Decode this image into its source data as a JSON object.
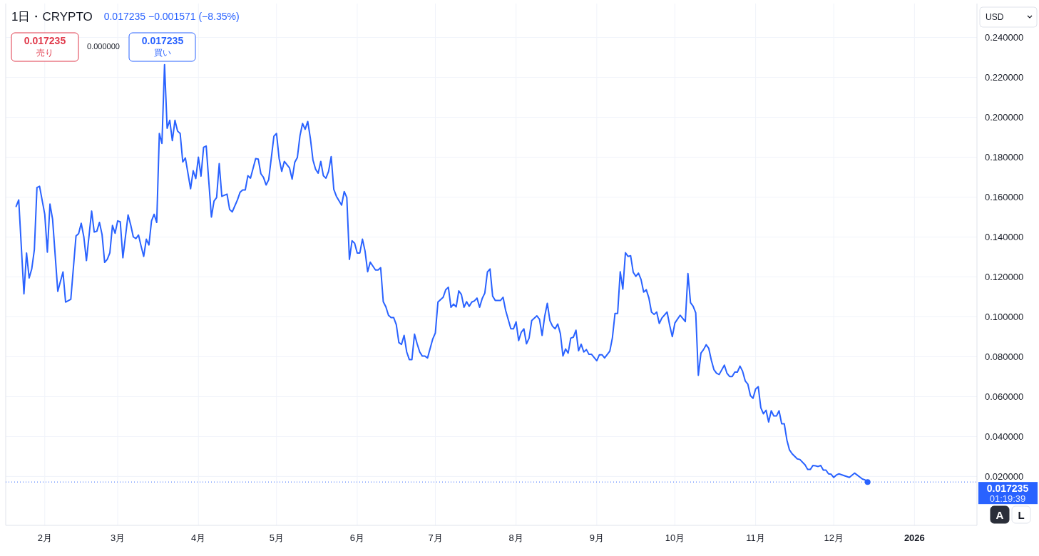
{
  "chart_data": {
    "type": "line",
    "title": "1日・CRYPTO",
    "subtitle": "0.017235 −0.001571 (−8.35%)",
    "ylabel": "USD",
    "x": [
      "2025-01-21",
      "2025-01-22",
      "2025-01-24",
      "2025-01-25",
      "2025-01-26",
      "2025-01-27",
      "2025-01-28",
      "2025-01-29",
      "2025-01-30",
      "2025-02-01",
      "2025-02-02",
      "2025-02-03",
      "2025-02-04",
      "2025-02-06",
      "2025-02-08",
      "2025-02-09",
      "2025-02-11",
      "2025-02-13",
      "2025-02-14",
      "2025-02-15",
      "2025-02-16",
      "2025-02-17",
      "2025-02-19",
      "2025-02-20",
      "2025-02-21",
      "2025-02-22",
      "2025-02-23",
      "2025-02-24",
      "2025-02-25",
      "2025-02-26",
      "2025-02-27",
      "2025-02-28",
      "2025-03-01",
      "2025-03-02",
      "2025-03-03",
      "2025-03-05",
      "2025-03-06",
      "2025-03-07",
      "2025-03-08",
      "2025-03-09",
      "2025-03-10",
      "2025-03-11",
      "2025-03-12",
      "2025-03-13",
      "2025-03-14",
      "2025-03-15",
      "2025-03-16",
      "2025-03-17",
      "2025-03-18",
      "2025-03-19",
      "2025-03-20",
      "2025-03-21",
      "2025-03-22",
      "2025-03-23",
      "2025-03-24",
      "2025-03-25",
      "2025-03-26",
      "2025-03-27",
      "2025-03-29",
      "2025-03-30",
      "2025-03-31",
      "2025-04-01",
      "2025-04-02",
      "2025-04-03",
      "2025-04-04",
      "2025-04-06",
      "2025-04-07",
      "2025-04-08",
      "2025-04-09",
      "2025-04-10",
      "2025-04-12",
      "2025-04-13",
      "2025-04-14",
      "2025-04-16",
      "2025-04-17",
      "2025-04-18",
      "2025-04-19",
      "2025-04-20",
      "2025-04-21",
      "2025-04-23",
      "2025-04-24",
      "2025-04-25",
      "2025-04-26",
      "2025-04-27",
      "2025-04-28",
      "2025-04-30",
      "2025-05-01",
      "2025-05-02",
      "2025-05-03",
      "2025-05-04",
      "2025-05-06",
      "2025-05-07",
      "2025-05-08",
      "2025-05-09",
      "2025-05-10",
      "2025-05-11",
      "2025-05-12",
      "2025-05-13",
      "2025-05-14",
      "2025-05-15",
      "2025-05-16",
      "2025-05-17",
      "2025-05-18",
      "2025-05-19",
      "2025-05-20",
      "2025-05-21",
      "2025-05-22",
      "2025-05-23",
      "2025-05-24",
      "2025-05-26",
      "2025-05-27",
      "2025-05-28",
      "2025-05-29",
      "2025-05-30",
      "2025-05-31",
      "2025-06-01",
      "2025-06-02",
      "2025-06-03",
      "2025-06-04",
      "2025-06-05",
      "2025-06-06",
      "2025-06-08",
      "2025-06-09",
      "2025-06-10",
      "2025-06-11",
      "2025-06-12",
      "2025-06-13",
      "2025-06-14",
      "2025-06-15",
      "2025-06-16",
      "2025-06-17",
      "2025-06-18",
      "2025-06-19",
      "2025-06-20",
      "2025-06-21",
      "2025-06-22",
      "2025-06-23",
      "2025-06-24",
      "2025-06-25",
      "2025-06-26",
      "2025-06-27",
      "2025-06-28",
      "2025-06-30",
      "2025-07-01",
      "2025-07-02",
      "2025-07-04",
      "2025-07-05",
      "2025-07-06",
      "2025-07-07",
      "2025-07-08",
      "2025-07-09",
      "2025-07-10",
      "2025-07-11",
      "2025-07-12",
      "2025-07-13",
      "2025-07-14",
      "2025-07-15",
      "2025-07-16",
      "2025-07-17",
      "2025-07-18",
      "2025-07-19",
      "2025-07-20",
      "2025-07-21",
      "2025-07-22",
      "2025-07-23",
      "2025-07-24",
      "2025-07-26",
      "2025-07-27",
      "2025-07-28",
      "2025-07-30",
      "2025-07-31",
      "2025-08-01",
      "2025-08-02",
      "2025-08-03",
      "2025-08-04",
      "2025-08-05",
      "2025-08-06",
      "2025-08-07",
      "2025-08-09",
      "2025-08-10",
      "2025-08-11",
      "2025-08-12",
      "2025-08-13",
      "2025-08-14",
      "2025-08-15",
      "2025-08-16",
      "2025-08-17",
      "2025-08-18",
      "2025-08-19",
      "2025-08-20",
      "2025-08-21",
      "2025-08-22",
      "2025-08-23",
      "2025-08-24",
      "2025-08-25",
      "2025-08-26",
      "2025-08-27",
      "2025-08-28",
      "2025-08-29",
      "2025-08-30",
      "2025-09-01",
      "2025-09-02",
      "2025-09-03",
      "2025-09-04",
      "2025-09-06",
      "2025-09-07",
      "2025-09-08",
      "2025-09-09",
      "2025-09-10",
      "2025-09-11",
      "2025-09-12",
      "2025-09-13",
      "2025-09-14",
      "2025-09-15",
      "2025-09-16",
      "2025-09-17",
      "2025-09-18",
      "2025-09-19",
      "2025-09-20",
      "2025-09-21",
      "2025-09-22",
      "2025-09-23",
      "2025-09-24",
      "2025-09-25",
      "2025-09-26",
      "2025-09-28",
      "2025-09-29",
      "2025-09-30",
      "2025-10-01",
      "2025-10-03",
      "2025-10-05",
      "2025-10-06",
      "2025-10-07",
      "2025-10-08",
      "2025-10-09",
      "2025-10-10",
      "2025-10-11",
      "2025-10-12",
      "2025-10-13",
      "2025-10-14",
      "2025-10-15",
      "2025-10-16",
      "2025-10-17",
      "2025-10-18",
      "2025-10-20",
      "2025-10-21",
      "2025-10-22",
      "2025-10-23",
      "2025-10-24",
      "2025-10-25",
      "2025-10-26",
      "2025-10-27",
      "2025-10-28",
      "2025-10-29",
      "2025-10-30",
      "2025-10-31",
      "2025-11-01",
      "2025-11-02",
      "2025-11-03",
      "2025-11-04",
      "2025-11-05",
      "2025-11-06",
      "2025-11-07",
      "2025-11-08",
      "2025-11-09",
      "2025-11-10",
      "2025-11-11",
      "2025-11-12",
      "2025-11-13",
      "2025-11-14",
      "2025-11-15",
      "2025-11-17",
      "2025-11-18",
      "2025-11-20",
      "2025-11-21",
      "2025-11-22",
      "2025-11-23",
      "2025-11-24",
      "2025-11-25",
      "2025-11-26",
      "2025-11-27",
      "2025-11-28",
      "2025-11-29",
      "2025-11-30",
      "2025-12-01",
      "2025-12-02",
      "2025-12-03",
      "2025-12-07",
      "2025-12-09",
      "2025-12-12",
      "2025-12-13",
      "2025-12-14"
    ],
    "series": [
      {
        "color": "#2962ff",
        "values": [
          0.1553,
          0.1586,
          0.1115,
          0.132,
          0.1195,
          0.124,
          0.1336,
          0.1648,
          0.1654,
          0.1514,
          0.1324,
          0.1565,
          0.149,
          0.1128,
          0.1225,
          0.1074,
          0.1088,
          0.1405,
          0.1417,
          0.1469,
          0.1401,
          0.1282,
          0.153,
          0.1425,
          0.1429,
          0.1473,
          0.1413,
          0.1273,
          0.1288,
          0.1321,
          0.1458,
          0.1419,
          0.1481,
          0.1476,
          0.1296,
          0.1511,
          0.1461,
          0.1401,
          0.1392,
          0.141,
          0.1354,
          0.1303,
          0.1389,
          0.136,
          0.1481,
          0.1514,
          0.1473,
          0.1919,
          0.1869,
          0.2264,
          0.1945,
          0.1985,
          0.1883,
          0.1985,
          0.1931,
          0.1919,
          0.1776,
          0.1796,
          0.1642,
          0.1732,
          0.1693,
          0.18,
          0.1705,
          0.185,
          0.1856,
          0.15,
          0.158,
          0.1598,
          0.1768,
          0.1604,
          0.1615,
          0.1538,
          0.1526,
          0.1586,
          0.1624,
          0.1636,
          0.1636,
          0.1707,
          0.1695,
          0.1793,
          0.179,
          0.1717,
          0.1699,
          0.1661,
          0.1687,
          0.1905,
          0.1919,
          0.1794,
          0.1729,
          0.1779,
          0.1746,
          0.169,
          0.1774,
          0.1798,
          0.1907,
          0.1969,
          0.194,
          0.1979,
          0.1895,
          0.1786,
          0.174,
          0.172,
          0.1779,
          0.1707,
          0.1695,
          0.1729,
          0.1803,
          0.1639,
          0.1604,
          0.156,
          0.1628,
          0.1598,
          0.1288,
          0.1381,
          0.1369,
          0.132,
          0.132,
          0.1389,
          0.133,
          0.1226,
          0.1274,
          0.1235,
          0.1235,
          0.1246,
          0.1076,
          0.105,
          0.1008,
          0.0996,
          0.0996,
          0.0961,
          0.0871,
          0.0862,
          0.0907,
          0.0824,
          0.0786,
          0.0786,
          0.0913,
          0.0865,
          0.0824,
          0.0803,
          0.0803,
          0.0794,
          0.0889,
          0.0919,
          0.1074,
          0.1098,
          0.1136,
          0.1148,
          0.1048,
          0.1064,
          0.105,
          0.113,
          0.1112,
          0.1048,
          0.1076,
          0.1053,
          0.1074,
          0.108,
          0.1094,
          0.1048,
          0.1092,
          0.1119,
          0.1225,
          0.124,
          0.1104,
          0.1082,
          0.1082,
          0.1098,
          0.1032,
          0.094,
          0.094,
          0.0975,
          0.0881,
          0.0923,
          0.094,
          0.0865,
          0.0893,
          0.0981,
          0.1005,
          0.0988,
          0.0907,
          0.1003,
          0.1068,
          0.0981,
          0.0953,
          0.094,
          0.0964,
          0.0917,
          0.0804,
          0.0839,
          0.0818,
          0.0893,
          0.0898,
          0.0933,
          0.083,
          0.0863,
          0.0824,
          0.0836,
          0.0812,
          0.0812,
          0.078,
          0.081,
          0.081,
          0.0794,
          0.0828,
          0.0895,
          0.1017,
          0.1017,
          0.1226,
          0.1139,
          0.1321,
          0.1303,
          0.1306,
          0.1223,
          0.1203,
          0.1219,
          0.1187,
          0.1124,
          0.1136,
          0.1095,
          0.1024,
          0.1012,
          0.1024,
          0.0967,
          0.0994,
          0.1024,
          0.0957,
          0.0901,
          0.0969,
          0.1008,
          0.0976,
          0.1217,
          0.1071,
          0.1053,
          0.102,
          0.0707,
          0.0818,
          0.0836,
          0.086,
          0.0842,
          0.0782,
          0.0735,
          0.0717,
          0.0711,
          0.0758,
          0.0717,
          0.0701,
          0.0701,
          0.0723,
          0.0723,
          0.0753,
          0.0727,
          0.0679,
          0.0663,
          0.0605,
          0.0592,
          0.0638,
          0.065,
          0.0544,
          0.0514,
          0.0532,
          0.0473,
          0.0529,
          0.0503,
          0.0503,
          0.0529,
          0.0464,
          0.0464,
          0.0383,
          0.0333,
          0.0314,
          0.0288,
          0.0285,
          0.0258,
          0.0235,
          0.0235,
          0.0255,
          0.0253,
          0.025,
          0.0255,
          0.0232,
          0.0232,
          0.0213,
          0.0211,
          0.0195,
          0.0207,
          0.0213,
          0.0195,
          0.0217,
          0.0187,
          0.0183,
          0.017235
        ]
      },
      {
        "type": "scatter",
        "color": "#2962ff",
        "marker": "circle",
        "x": [
          "2025-12-14"
        ],
        "values": [
          0.017235
        ]
      }
    ],
    "xlim": [
      "2025-01-17",
      "2026-01-25"
    ],
    "ylim": [
      -0.0045,
      0.257
    ],
    "xticks": [
      {
        "value": "2025-02-01",
        "label": "2月"
      },
      {
        "value": "2025-03-01",
        "label": "3月"
      },
      {
        "value": "2025-04-01",
        "label": "4月"
      },
      {
        "value": "2025-05-01",
        "label": "5月"
      },
      {
        "value": "2025-06-01",
        "label": "6月"
      },
      {
        "value": "2025-07-01",
        "label": "7月"
      },
      {
        "value": "2025-08-01",
        "label": "8月"
      },
      {
        "value": "2025-09-01",
        "label": "9月"
      },
      {
        "value": "2025-10-01",
        "label": "10月"
      },
      {
        "value": "2025-11-01",
        "label": "11月"
      },
      {
        "value": "2025-12-01",
        "label": "12月"
      },
      {
        "value": "2026-01-01",
        "label": "2026"
      }
    ],
    "yticks": [
      {
        "value": 0.02,
        "label": "0.020000"
      },
      {
        "value": 0.04,
        "label": "0.040000"
      },
      {
        "value": 0.06,
        "label": "0.060000"
      },
      {
        "value": 0.08,
        "label": "0.080000"
      },
      {
        "value": 0.1,
        "label": "0.100000"
      },
      {
        "value": 0.12,
        "label": "0.120000"
      },
      {
        "value": 0.14,
        "label": "0.140000"
      },
      {
        "value": 0.16,
        "label": "0.160000"
      },
      {
        "value": 0.18,
        "label": "0.180000"
      },
      {
        "value": 0.2,
        "label": "0.200000"
      },
      {
        "value": 0.22,
        "label": "0.220000"
      },
      {
        "value": 0.24,
        "label": "0.240000"
      }
    ],
    "grid": true,
    "ref_lines": [
      {
        "axis": "y",
        "value": 0.017235,
        "label": "0.017235",
        "color": "#2962ff",
        "line_style": "dotted"
      }
    ],
    "annotations": [
      "0.017235",
      "売り",
      "0.000000",
      "0.017235",
      "買い",
      "01:19:39",
      "A",
      "L"
    ]
  }
}
